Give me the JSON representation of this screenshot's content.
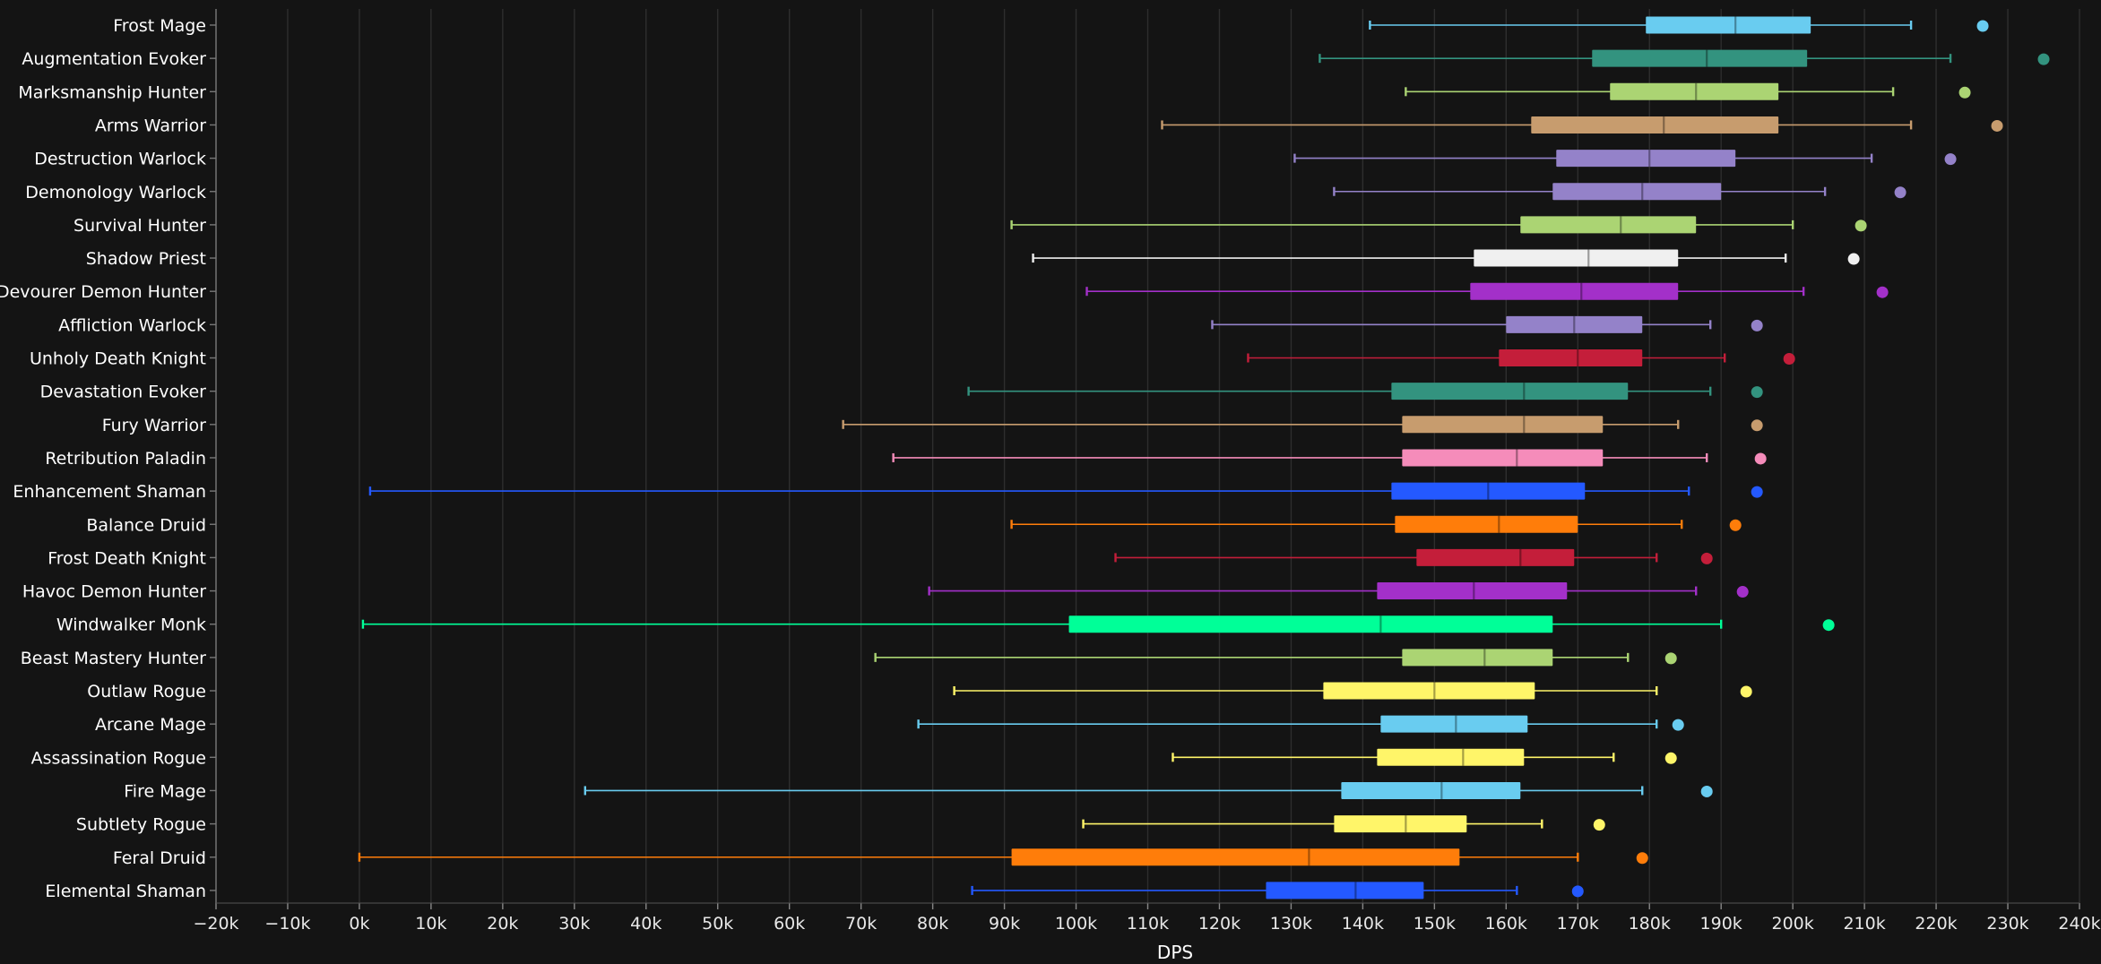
{
  "chart_data": {
    "type": "boxplot",
    "orientation": "horizontal",
    "xlabel": "DPS",
    "xlim": [
      -20000,
      240000
    ],
    "xticks": [
      -20000,
      -10000,
      0,
      10000,
      20000,
      30000,
      40000,
      50000,
      60000,
      70000,
      80000,
      90000,
      100000,
      110000,
      120000,
      130000,
      140000,
      150000,
      160000,
      170000,
      180000,
      190000,
      200000,
      210000,
      220000,
      230000,
      240000
    ],
    "xtick_labels": [
      "−20k",
      "−10k",
      "0k",
      "10k",
      "20k",
      "30k",
      "40k",
      "50k",
      "60k",
      "70k",
      "80k",
      "90k",
      "100k",
      "110k",
      "120k",
      "130k",
      "140k",
      "150k",
      "160k",
      "170k",
      "180k",
      "190k",
      "200k",
      "210k",
      "220k",
      "230k",
      "240k"
    ],
    "grid": true,
    "background": "#141414",
    "series": [
      {
        "name": "Frost Mage",
        "color": "#69CCF0",
        "min": 141000,
        "q1": 179500,
        "median": 192000,
        "q3": 202500,
        "max": 216500,
        "outlier": 226500
      },
      {
        "name": "Augmentation Evoker",
        "color": "#33937F",
        "min": 134000,
        "q1": 172000,
        "median": 188000,
        "q3": 202000,
        "max": 222000,
        "outlier": 235000
      },
      {
        "name": "Marksmanship Hunter",
        "color": "#ABD473",
        "min": 146000,
        "q1": 174500,
        "median": 186500,
        "q3": 198000,
        "max": 214000,
        "outlier": 224000
      },
      {
        "name": "Arms Warrior",
        "color": "#C79C6E",
        "min": 112000,
        "q1": 163500,
        "median": 182000,
        "q3": 198000,
        "max": 216500,
        "outlier": 228500
      },
      {
        "name": "Destruction Warlock",
        "color": "#9482C9",
        "min": 130500,
        "q1": 167000,
        "median": 180000,
        "q3": 192000,
        "max": 211000,
        "outlier": 222000
      },
      {
        "name": "Demonology Warlock",
        "color": "#9482C9",
        "min": 136000,
        "q1": 166500,
        "median": 179000,
        "q3": 190000,
        "max": 204500,
        "outlier": 215000
      },
      {
        "name": "Survival Hunter",
        "color": "#ABD473",
        "min": 91000,
        "q1": 162000,
        "median": 176000,
        "q3": 186500,
        "max": 200000,
        "outlier": 209500
      },
      {
        "name": "Shadow Priest",
        "color": "#F0F0F0",
        "min": 94000,
        "q1": 155500,
        "median": 171500,
        "q3": 184000,
        "max": 199000,
        "outlier": 208500
      },
      {
        "name": "Devourer Demon Hunter",
        "color": "#A330C9",
        "min": 101500,
        "q1": 155000,
        "median": 170500,
        "q3": 184000,
        "max": 201500,
        "outlier": 212500
      },
      {
        "name": "Affliction Warlock",
        "color": "#9482C9",
        "min": 119000,
        "q1": 160000,
        "median": 169500,
        "q3": 179000,
        "max": 188500,
        "outlier": 195000
      },
      {
        "name": "Unholy Death Knight",
        "color": "#C41E3A",
        "min": 124000,
        "q1": 159000,
        "median": 170000,
        "q3": 179000,
        "max": 190500,
        "outlier": 199500
      },
      {
        "name": "Devastation Evoker",
        "color": "#33937F",
        "min": 85000,
        "q1": 144000,
        "median": 162500,
        "q3": 177000,
        "max": 188500,
        "outlier": 195000
      },
      {
        "name": "Fury Warrior",
        "color": "#C79C6E",
        "min": 67500,
        "q1": 145500,
        "median": 162500,
        "q3": 173500,
        "max": 184000,
        "outlier": 195000
      },
      {
        "name": "Retribution Paladin",
        "color": "#F58CBA",
        "min": 74500,
        "q1": 145500,
        "median": 161500,
        "q3": 173500,
        "max": 188000,
        "outlier": 195500
      },
      {
        "name": "Enhancement Shaman",
        "color": "#2459FF",
        "min": 1500,
        "q1": 144000,
        "median": 157500,
        "q3": 171000,
        "max": 185500,
        "outlier": 195000
      },
      {
        "name": "Balance Druid",
        "color": "#FF7D0A",
        "min": 91000,
        "q1": 144500,
        "median": 159000,
        "q3": 170000,
        "max": 184500,
        "outlier": 192000
      },
      {
        "name": "Frost Death Knight",
        "color": "#C41E3A",
        "min": 105500,
        "q1": 147500,
        "median": 162000,
        "q3": 169500,
        "max": 181000,
        "outlier": 188000
      },
      {
        "name": "Havoc Demon Hunter",
        "color": "#A330C9",
        "min": 79500,
        "q1": 142000,
        "median": 155500,
        "q3": 168500,
        "max": 186500,
        "outlier": 193000
      },
      {
        "name": "Windwalker Monk",
        "color": "#00FF98",
        "min": 500,
        "q1": 99000,
        "median": 142500,
        "q3": 166500,
        "max": 190000,
        "outlier": 205000
      },
      {
        "name": "Beast Mastery Hunter",
        "color": "#ABD473",
        "min": 72000,
        "q1": 145500,
        "median": 157000,
        "q3": 166500,
        "max": 177000,
        "outlier": 183000
      },
      {
        "name": "Outlaw Rogue",
        "color": "#FFF569",
        "min": 83000,
        "q1": 134500,
        "median": 150000,
        "q3": 164000,
        "max": 181000,
        "outlier": 193500
      },
      {
        "name": "Arcane Mage",
        "color": "#69CCF0",
        "min": 78000,
        "q1": 142500,
        "median": 153000,
        "q3": 163000,
        "max": 181000,
        "outlier": 184000
      },
      {
        "name": "Assassination Rogue",
        "color": "#FFF569",
        "min": 113500,
        "q1": 142000,
        "median": 154000,
        "q3": 162500,
        "max": 175000,
        "outlier": 183000
      },
      {
        "name": "Fire Mage",
        "color": "#69CCF0",
        "min": 31500,
        "q1": 137000,
        "median": 151000,
        "q3": 162000,
        "max": 179000,
        "outlier": 188000
      },
      {
        "name": "Subtlety Rogue",
        "color": "#FFF569",
        "min": 101000,
        "q1": 136000,
        "median": 146000,
        "q3": 154500,
        "max": 165000,
        "outlier": 173000
      },
      {
        "name": "Feral Druid",
        "color": "#FF7D0A",
        "min": 0,
        "q1": 91000,
        "median": 132500,
        "q3": 153500,
        "max": 170000,
        "outlier": 179000
      },
      {
        "name": "Elemental Shaman",
        "color": "#2459FF",
        "min": 85500,
        "q1": 126500,
        "median": 139000,
        "q3": 148500,
        "max": 161500,
        "outlier": 170000
      }
    ]
  }
}
